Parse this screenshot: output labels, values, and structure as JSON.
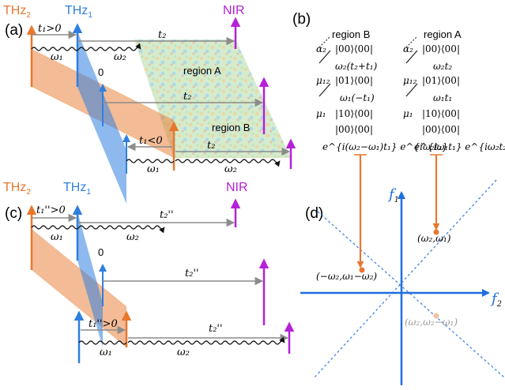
{
  "colors": {
    "thz2": "#E8772E",
    "thz1": "#2F7FE0",
    "nir": "#B620D8",
    "arrow_gray": "#8C8C8C",
    "axis_blue": "#1F6FE0",
    "dot_orange": "#E8772E"
  },
  "panel_a": {
    "tag": "(a)",
    "thz2_label": "THz",
    "thz2_sub": "2",
    "thz1_label": "THz",
    "thz1_sub": "1",
    "nir_label": "NIR",
    "t1_pos": "t₁>0",
    "t1_neg": "t₁<0",
    "t2": "t₂",
    "omega1": "ω₁",
    "omega2": "ω₂",
    "zero": "0",
    "region_a": "region A",
    "region_b": "region B"
  },
  "panel_b": {
    "tag": "(b)",
    "region_b": {
      "title": "region B",
      "rows": [
        "α₂",
        "|00⟩⟨00|",
        "ω₂(t₂+t₁)",
        "μ₁₂",
        "|01⟩⟨00|",
        "ω₁(−t₁)",
        "μ₁",
        "|10⟩⟨00|",
        "|00⟩⟨00|"
      ],
      "phase": "e^{i(ω₂−ω₁)t₁} e^{iω₂t₂}"
    },
    "region_a": {
      "title": "region A",
      "rows": [
        "α₂",
        "|00⟩⟨00|",
        "ω₂t₂",
        "μ₁₂",
        "|01⟩⟨00|",
        "ω₁t₁",
        "μ₁",
        "|10⟩⟨00|",
        "|00⟩⟨00|"
      ],
      "phase": "e^{iω₁t₁} e^{iω₂t₂}"
    }
  },
  "panel_c": {
    "tag": "(c)",
    "thz2_label": "THz",
    "thz2_sub": "2",
    "thz1_label": "THz",
    "thz1_sub": "1",
    "nir_label": "NIR",
    "t1": "t₁''>0",
    "t2": "t₂''",
    "omega1": "ω₁",
    "omega2": "ω₂",
    "zero": "0"
  },
  "panel_d": {
    "tag": "(d)",
    "f1": "f",
    "f1_sub": "1",
    "f2": "f",
    "f2_sub": "2",
    "peak_a": "(ω₂,ω₁)",
    "peak_b": "(−ω₂,ω₁−ω₂)",
    "peak_ghost": "(ω₂,ω₂−ω₁)"
  }
}
